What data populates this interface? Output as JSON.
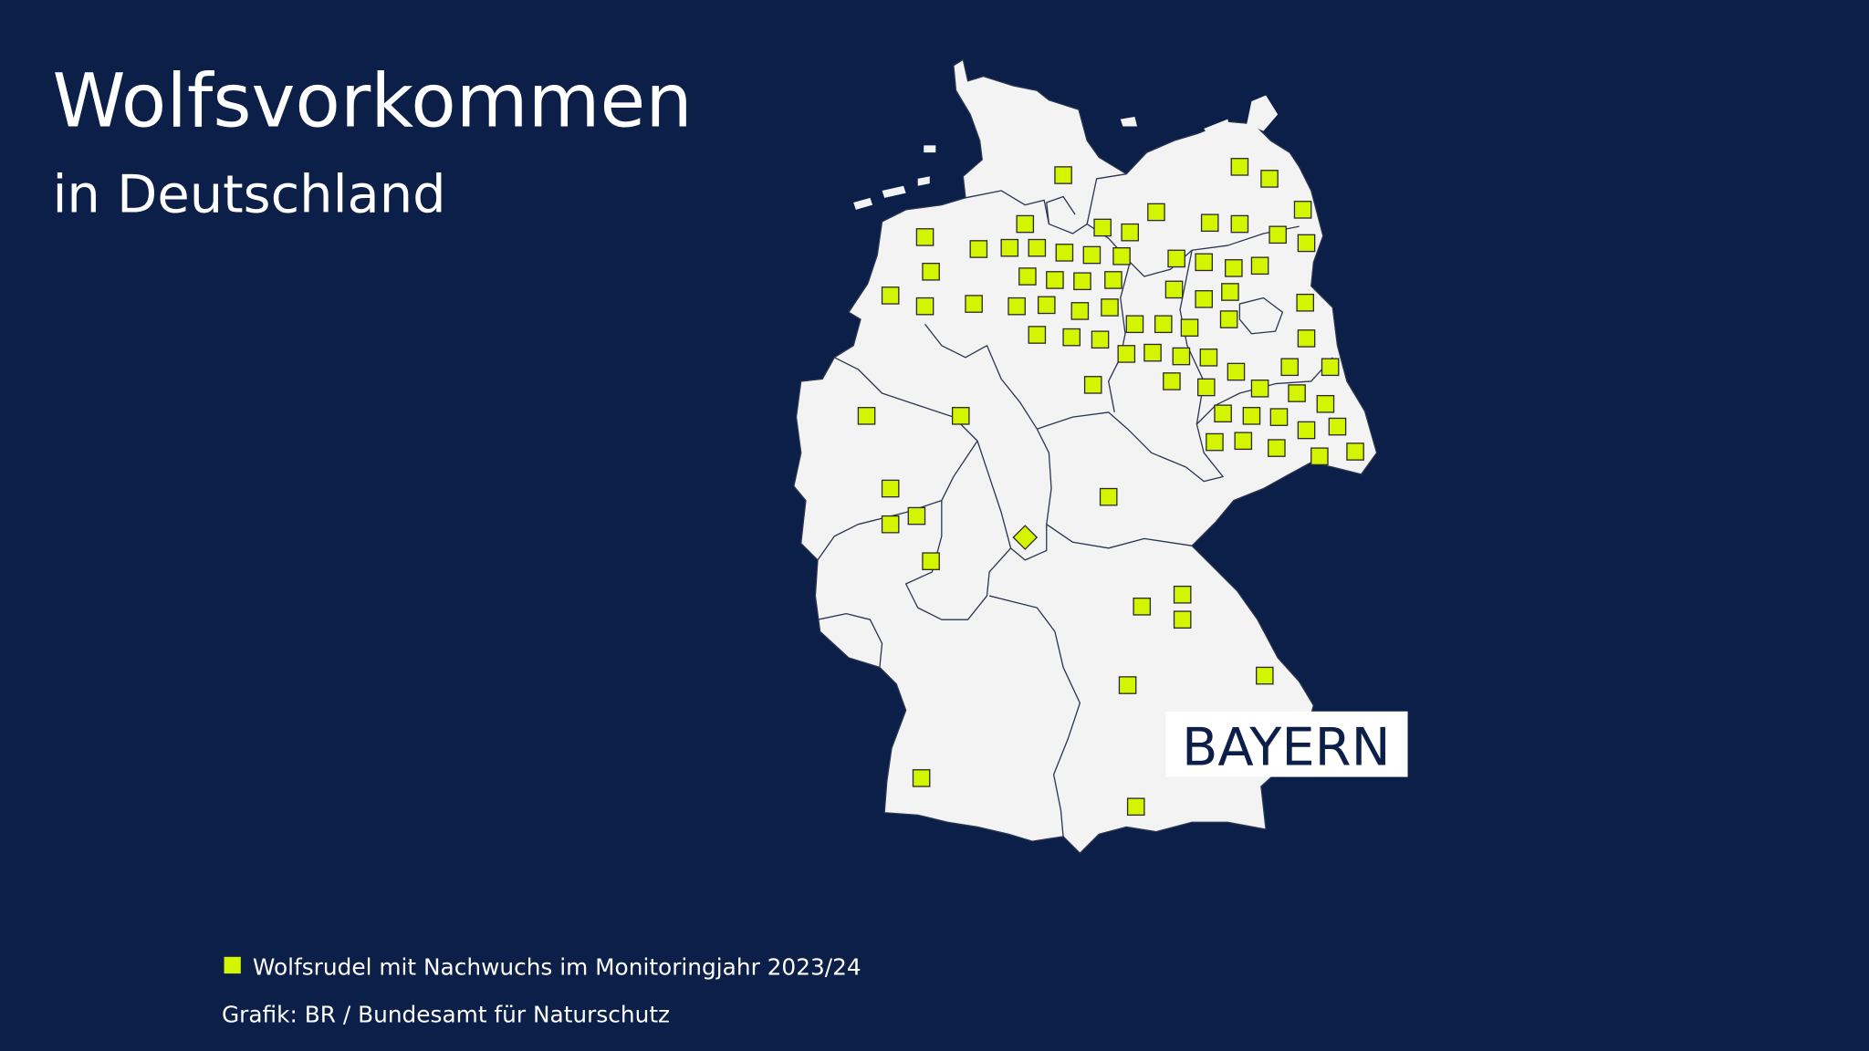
{
  "header": {
    "title": "Wolfsvorkommen",
    "subtitle": "in Deutschland"
  },
  "map": {
    "region_label": "BAYERN"
  },
  "legend": {
    "label": "Wolfsrudel mit Nachwuchs im Monitoringjahr 2023/24"
  },
  "footer": {
    "source": "Grafik: BR / Bundesamt für Naturschutz"
  }
}
